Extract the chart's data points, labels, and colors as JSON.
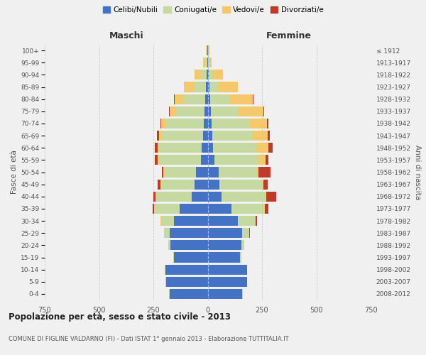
{
  "age_groups": [
    "0-4",
    "5-9",
    "10-14",
    "15-19",
    "20-24",
    "25-29",
    "30-34",
    "35-39",
    "40-44",
    "45-49",
    "50-54",
    "55-59",
    "60-64",
    "65-69",
    "70-74",
    "75-79",
    "80-84",
    "85-89",
    "90-94",
    "95-99",
    "100+"
  ],
  "birth_years": [
    "2008-2012",
    "2003-2007",
    "1998-2002",
    "1993-1997",
    "1988-1992",
    "1983-1987",
    "1978-1982",
    "1973-1977",
    "1968-1972",
    "1963-1967",
    "1958-1962",
    "1953-1957",
    "1948-1952",
    "1943-1947",
    "1938-1942",
    "1933-1937",
    "1928-1932",
    "1923-1927",
    "1918-1922",
    "1913-1917",
    "≤ 1912"
  ],
  "male": {
    "celibi": [
      175,
      190,
      195,
      155,
      170,
      175,
      155,
      130,
      75,
      60,
      55,
      32,
      28,
      22,
      18,
      15,
      12,
      8,
      5,
      3,
      2
    ],
    "coniugati": [
      3,
      3,
      3,
      5,
      10,
      25,
      60,
      115,
      165,
      155,
      145,
      195,
      195,
      190,
      175,
      130,
      100,
      55,
      25,
      8,
      3
    ],
    "vedovi": [
      0,
      0,
      0,
      0,
      0,
      0,
      1,
      1,
      1,
      2,
      3,
      5,
      8,
      12,
      20,
      30,
      40,
      45,
      30,
      10,
      2
    ],
    "divorziati": [
      0,
      0,
      0,
      0,
      1,
      1,
      2,
      8,
      10,
      12,
      8,
      12,
      12,
      10,
      5,
      3,
      2,
      0,
      0,
      0,
      0
    ]
  },
  "female": {
    "nubili": [
      160,
      180,
      180,
      150,
      155,
      160,
      140,
      110,
      65,
      55,
      50,
      32,
      25,
      20,
      18,
      15,
      12,
      8,
      5,
      2,
      2
    ],
    "coniugate": [
      3,
      3,
      3,
      5,
      12,
      30,
      80,
      150,
      200,
      195,
      175,
      200,
      200,
      185,
      175,
      125,
      90,
      40,
      15,
      5,
      2
    ],
    "vedove": [
      0,
      0,
      0,
      0,
      0,
      1,
      2,
      2,
      5,
      5,
      10,
      35,
      55,
      70,
      80,
      115,
      105,
      90,
      50,
      10,
      3
    ],
    "divorziate": [
      0,
      0,
      0,
      0,
      1,
      2,
      5,
      18,
      45,
      22,
      55,
      12,
      18,
      12,
      8,
      5,
      5,
      2,
      0,
      0,
      0
    ]
  },
  "colors": {
    "celibi": "#4472C4",
    "coniugati": "#C5D9A0",
    "vedovi": "#F5C96B",
    "divorziati": "#C0392B"
  },
  "title": "Popolazione per età, sesso e stato civile - 2013",
  "subtitle": "COMUNE DI FIGLINE VALDARNO (FI) - Dati ISTAT 1° gennaio 2013 - Elaborazione TUTTITALIA.IT",
  "xlabel_left": "Maschi",
  "xlabel_right": "Femmine",
  "ylabel_left": "Fasce di età",
  "ylabel_right": "Anni di nascita",
  "xlim": 750,
  "background": "#f0f0f0",
  "legend_labels": [
    "Celibi/Nubili",
    "Coniugati/e",
    "Vedovi/e",
    "Divorziati/e"
  ]
}
